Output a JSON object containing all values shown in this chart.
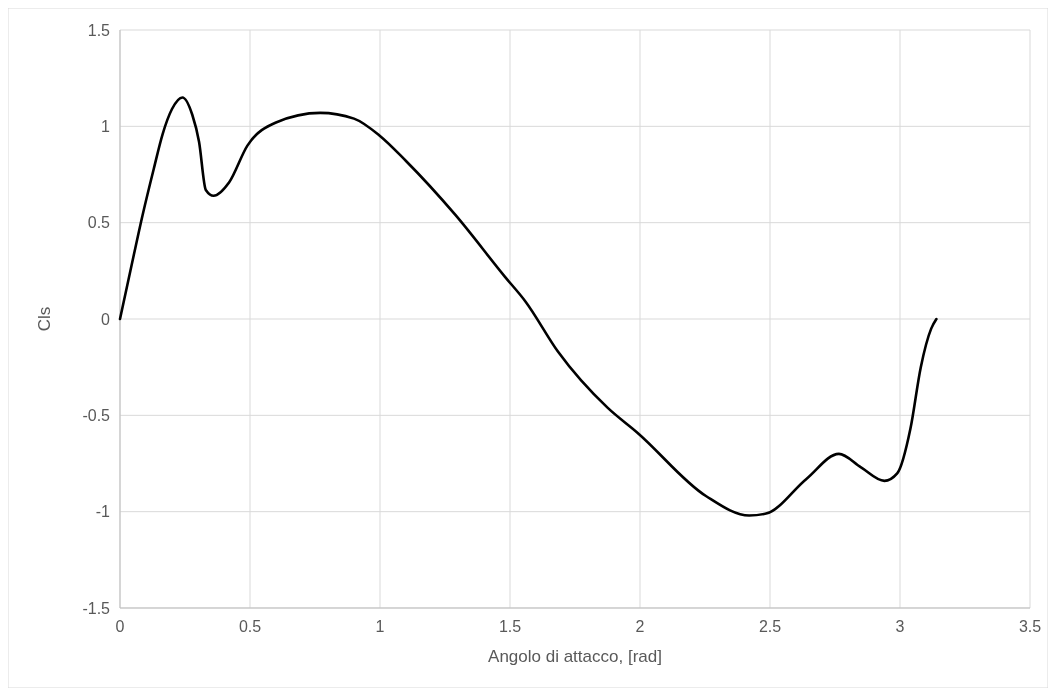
{
  "chart_data": {
    "type": "line",
    "xlabel": "Angolo di attacco, [rad]",
    "ylabel": "Cls",
    "xlim": [
      0,
      3.5
    ],
    "ylim": [
      -1.5,
      1.5
    ],
    "xticks": [
      0,
      0.5,
      1,
      1.5,
      2,
      2.5,
      3,
      3.5
    ],
    "yticks": [
      -1.5,
      -1,
      -0.5,
      0,
      0.5,
      1,
      1.5
    ],
    "grid": true,
    "marker": "none",
    "line_style": "solid",
    "series": [
      {
        "color": "#000000",
        "x": [
          0,
          0.04,
          0.087,
          0.13,
          0.164,
          0.2,
          0.24,
          0.278,
          0.304,
          0.33,
          0.36,
          0.42,
          0.49,
          0.6,
          0.77,
          0.9,
          1.0,
          1.1,
          1.29,
          1.48,
          1.56,
          1.685,
          1.875,
          1.99,
          2.255,
          2.42,
          2.485,
          2.64,
          2.765,
          2.85,
          2.94,
          2.99,
          3.04,
          3.08,
          3.12,
          3.14
        ],
        "values": [
          0,
          0.25,
          0.54,
          0.78,
          0.96,
          1.09,
          1.15,
          1.06,
          0.92,
          0.67,
          0.64,
          0.71,
          0.9,
          1.02,
          1.07,
          1.04,
          0.95,
          0.82,
          0.54,
          0.22,
          0.09,
          -0.17,
          -0.46,
          -0.59,
          -0.92,
          -1.02,
          -1.01,
          -0.83,
          -0.7,
          -0.77,
          -0.84,
          -0.8,
          -0.57,
          -0.25,
          -0.05,
          0
        ]
      }
    ]
  }
}
